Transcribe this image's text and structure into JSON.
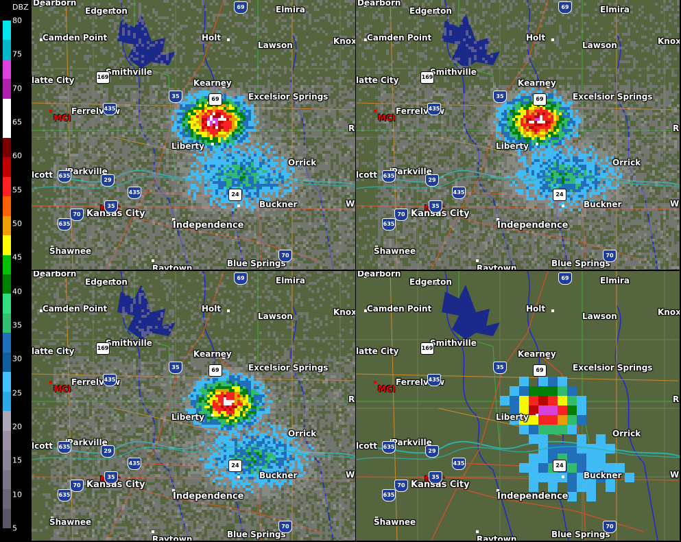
{
  "scale": {
    "title": "DBZ",
    "ticks": [
      "80",
      "75",
      "70",
      "65",
      "60",
      "55",
      "50",
      "45",
      "40",
      "35",
      "30",
      "25",
      "20",
      "15",
      "10",
      "5"
    ],
    "colors": [
      "#00e5ee",
      "#00b8c8",
      "#e040e0",
      "#b020b0",
      "#ffffff",
      "#ffffff",
      "#7a0000",
      "#c00000",
      "#ff2020",
      "#ff6000",
      "#f0a000",
      "#ffff00",
      "#00c000",
      "#008000",
      "#30e080",
      "#30c070",
      "#2070c0",
      "#1060a0",
      "#40c0ff",
      "#2aa8e8",
      "#b0a8b8",
      "#9c92a4",
      "#8c8498",
      "#7c7488",
      "#6c6478",
      "#5c5468"
    ]
  },
  "map": {
    "labels": {
      "dearborn": "Dearborn",
      "edgerton": "Edgerton",
      "elmira": "Elmira",
      "camden_point": "Camden Point",
      "holt": "Holt",
      "lawson": "Lawson",
      "knox": "Knox",
      "smithville": "Smithville",
      "platte_city": "latte City",
      "kearney": "Kearney",
      "excelsior_springs": "Excelsior Springs",
      "ferrelview": "Ferrelview",
      "mci": "MCI",
      "liberty": "Liberty",
      "orrick": "Orrick",
      "parkville": "Parkville",
      "wolcott": "lcott",
      "mkc": "MKC",
      "kansas_city": "Kansas City",
      "buckner": "Buckner",
      "independence": "Independence",
      "shawnee": "Shawnee",
      "blue_springs": "Blue Springs",
      "raytown": "Raytown",
      "edge_r": "R",
      "edge_w": "W"
    },
    "shields": {
      "i35": "35",
      "i435": "435",
      "i635": "635",
      "i29": "29",
      "i70": "70",
      "us169": "169",
      "us69": "69",
      "us24": "24"
    }
  },
  "panels": [
    {
      "name": "top-left",
      "intensity": 1.0,
      "pixel": 4
    },
    {
      "name": "top-right",
      "intensity": 0.95,
      "pixel": 4
    },
    {
      "name": "bottom-left",
      "intensity": 0.9,
      "pixel": 4
    },
    {
      "name": "bottom-right",
      "intensity": 1.0,
      "pixel": 14
    }
  ]
}
